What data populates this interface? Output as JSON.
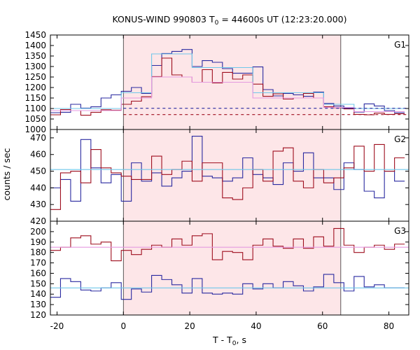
{
  "chart_data": {
    "type": "line",
    "title": "KONUS-WIND 990803 T",
    "title_sub": "0",
    "title_rest": " = 44600s UT (12:23:20.000)",
    "xlabel": "T - T",
    "xlabel_sub": "0",
    "xlabel_rest": ", s",
    "ylabel": "counts / sec",
    "xlim": [
      -22,
      86
    ],
    "xticks": [
      -20,
      0,
      20,
      40,
      60,
      80
    ],
    "highlight_interval": [
      0,
      65.5
    ],
    "colors": {
      "highlight": "#fde6e8",
      "blue": "#2a2aa0",
      "red": "#9e0e1e",
      "cyan": "#6fc7ea",
      "pink": "#e59ae0"
    },
    "panels": [
      {
        "label": "G1",
        "ylim": [
          1000,
          1450
        ],
        "yticks": [
          1000,
          1050,
          1100,
          1150,
          1200,
          1250,
          1300,
          1350,
          1400,
          1450
        ],
        "series": [
          {
            "color": "blue",
            "style": "step",
            "bin_start": -22,
            "bin_width": 3.05,
            "values": [
              1080,
              1082,
              1120,
              1102,
              1108,
              1150,
              1165,
              1182,
              1200,
              1172,
              1305,
              1362,
              1372,
              1381,
              1300,
              1328,
              1320,
              1290,
              1268,
              1268,
              1298,
              1190,
              1160,
              1172,
              1165,
              1158,
              1178,
              1124,
              1112,
              1102,
              1083,
              1122,
              1112,
              1090,
              1080
            ]
          },
          {
            "color": "red",
            "style": "step",
            "bin_start": -22,
            "bin_width": 3.05,
            "values": [
              1070,
              1095,
              1090,
              1068,
              1082,
              1094,
              1092,
              1120,
              1135,
              1156,
              1252,
              1340,
              1260,
              1250,
              1225,
              1285,
              1222,
              1272,
              1240,
              1260,
              1216,
              1158,
              1170,
              1145,
              1150,
              1172,
              1150,
              1108,
              1104,
              1098,
              1072,
              1070,
              1078,
              1072,
              1075
            ]
          },
          {
            "color": "cyan",
            "style": "step",
            "bin_start": -22,
            "bin_width": 3.05,
            "values": [
              1100,
              1100,
              1100,
              1100,
              1100,
              1100,
              1100,
              1175,
              1175,
              1175,
              1360,
              1360,
              1360,
              1360,
              1295,
              1295,
              1295,
              1295,
              1295,
              1295,
              1175,
              1175,
              1175,
              1175,
              1175,
              1175,
              1175,
              1120,
              1120,
              1120,
              1100,
              1100,
              1100,
              1100,
              1100
            ]
          },
          {
            "color": "pink",
            "style": "step",
            "bin_start": -22,
            "bin_width": 3.05,
            "values": [
              1090,
              1090,
              1090,
              1090,
              1090,
              1090,
              1090,
              1150,
              1150,
              1150,
              1250,
              1250,
              1250,
              1250,
              1225,
              1225,
              1225,
              1225,
              1225,
              1225,
              1150,
              1150,
              1150,
              1150,
              1150,
              1150,
              1150,
              1105,
              1105,
              1105,
              1085,
              1085,
              1085,
              1085,
              1085
            ]
          },
          {
            "color": "blue",
            "style": "dashed-hline",
            "from": 0,
            "y": 1101
          },
          {
            "color": "red",
            "style": "dashed-hline",
            "from": 0,
            "y": 1071
          }
        ]
      },
      {
        "label": "G2",
        "ylim": [
          420,
          475
        ],
        "yticks": [
          420,
          430,
          440,
          450,
          460,
          470
        ],
        "series": [
          {
            "color": "blue",
            "style": "step",
            "bin_start": -22,
            "bin_width": 3.05,
            "values": [
              440,
              445,
              432,
              469,
              452,
              443,
              448,
              432,
              455,
              444,
              449,
              441,
              446,
              450,
              471,
              447,
              446,
              444,
              446,
              458,
              448,
              446,
              442,
              455,
              450,
              461,
              446,
              446,
              439,
              455,
              451,
              438,
              434,
              450,
              444
            ]
          },
          {
            "color": "red",
            "style": "step",
            "bin_start": -22,
            "bin_width": 3.05,
            "values": [
              427,
              449,
              450,
              443,
              463,
              452,
              449,
              447,
              445,
              445,
              459,
              448,
              451,
              456,
              444,
              455,
              455,
              434,
              433,
              440,
              451,
              444,
              462,
              464,
              444,
              440,
              451,
              443,
              446,
              452,
              465,
              450,
              466,
              450,
              458
            ]
          },
          {
            "color": "cyan",
            "style": "hline",
            "y": 451
          }
        ]
      },
      {
        "label": "G3",
        "ylim": [
          120,
          210
        ],
        "yticks": [
          120,
          130,
          140,
          150,
          160,
          170,
          180,
          190,
          200
        ],
        "series": [
          {
            "color": "red",
            "style": "step",
            "bin_start": -22,
            "bin_width": 3.05,
            "values": [
              182,
              185,
              194,
              196,
              188,
              190,
              172,
              182,
              178,
              183,
              187,
              185,
              193,
              187,
              196,
              198,
              173,
              181,
              180,
              173,
              187,
              193,
              186,
              184,
              193,
              184,
              195,
              186,
              203,
              187,
              180,
              185,
              187,
              183,
              188
            ]
          },
          {
            "color": "blue",
            "style": "step",
            "bin_start": -22,
            "bin_width": 3.05,
            "values": [
              137,
              155,
              152,
              144,
              143,
              146,
              151,
              135,
              145,
              142,
              158,
              154,
              149,
              141,
              155,
              141,
              140,
              141,
              140,
              150,
              145,
              150,
              146,
              152,
              148,
              143,
              147,
              159,
              151,
              143,
              157,
              147,
              149,
              146,
              146
            ]
          },
          {
            "color": "pink",
            "style": "hline",
            "y": 185
          },
          {
            "color": "cyan",
            "style": "hline",
            "y": 146
          }
        ]
      }
    ]
  }
}
